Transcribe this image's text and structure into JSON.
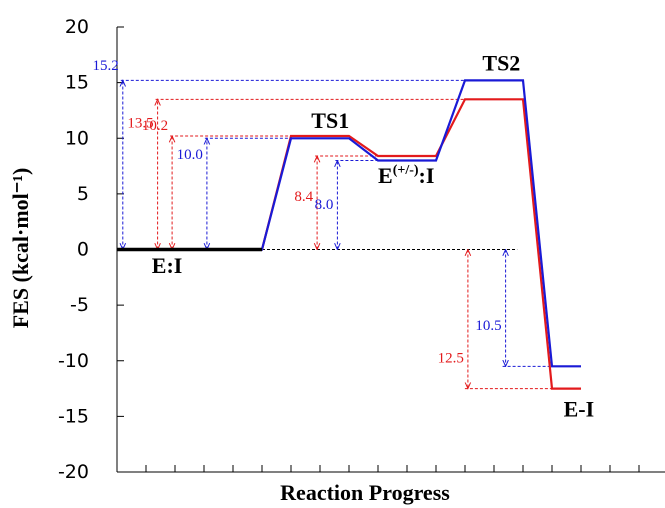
{
  "chart_data": {
    "type": "line",
    "title": "",
    "xlabel": "Reaction Progress",
    "ylabel": "FES (kcal·mol⁻¹)",
    "ylim": [
      -20,
      20
    ],
    "yticks": [
      "20",
      "15",
      "10",
      "5",
      "0",
      "-5",
      "-10",
      "-15",
      "-20"
    ],
    "x_categories": [
      "E:I",
      "TS1",
      "E(+/-):I",
      "TS2",
      "E-I"
    ],
    "series": [
      {
        "name": "",
        "color": "#e31a1c",
        "points": [
          [
            0,
            0
          ],
          [
            5,
            0
          ],
          [
            6,
            10.2
          ],
          [
            8,
            10.2
          ],
          [
            9,
            8.4
          ],
          [
            11,
            8.4
          ],
          [
            12,
            13.5
          ],
          [
            14,
            13.5
          ],
          [
            15,
            -12.5
          ],
          [
            16,
            -12.5
          ]
        ]
      },
      {
        "name": "",
        "color": "#1a1ad6",
        "points": [
          [
            0,
            0
          ],
          [
            5,
            0
          ],
          [
            6,
            10.0
          ],
          [
            8,
            10.0
          ],
          [
            9,
            8.0
          ],
          [
            11,
            8.0
          ],
          [
            12,
            15.2
          ],
          [
            14,
            15.2
          ],
          [
            15,
            -10.5
          ],
          [
            16,
            -10.5
          ]
        ]
      }
    ],
    "state_labels": [
      {
        "text": "E:I",
        "x": 1.2,
        "y": -2.1
      },
      {
        "text": "TS1",
        "x": 6.7,
        "y": 10.9
      },
      {
        "text": "E",
        "sup": "(+/-)",
        "tail": ":I",
        "x": 9.0,
        "y": 6.0
      },
      {
        "text": "TS2",
        "x": 12.6,
        "y": 16.1
      },
      {
        "text": "E-I",
        "x": 15.4,
        "y": -15.0
      }
    ],
    "annotations": [
      {
        "text": "15.2",
        "color": "#1a1ad6",
        "x": 0.2,
        "y_from": 0,
        "y_to": 15.2,
        "label_y": 16.6,
        "guide_to": 12
      },
      {
        "text": "13.5",
        "color": "#e31a1c",
        "x": 1.4,
        "y_from": 0,
        "y_to": 13.5,
        "label_y": 11.4,
        "guide_to": 12
      },
      {
        "text": "10.2",
        "color": "#e31a1c",
        "x": 1.9,
        "y_from": 0,
        "y_to": 10.2,
        "label_y": 11.2,
        "guide_to": 6
      },
      {
        "text": "10.0",
        "color": "#1a1ad6",
        "x": 3.1,
        "y_from": 0,
        "y_to": 10.0,
        "label_y": 8.6,
        "guide_to": 6
      },
      {
        "text": "8.4",
        "color": "#e31a1c",
        "x": 6.9,
        "y_from": 0,
        "y_to": 8.4,
        "label_y": 4.8,
        "guide_to": 9
      },
      {
        "text": "8.0",
        "color": "#1a1ad6",
        "x": 7.6,
        "y_from": 0,
        "y_to": 8.0,
        "label_y": 4.1,
        "guide_to": 9
      },
      {
        "text": "12.5",
        "color": "#e31a1c",
        "x": 12.1,
        "y_from": 0,
        "y_to": -12.5,
        "label_y": -9.7,
        "guide_from": 10.4
      },
      {
        "text": "10.5",
        "color": "#1a1ad6",
        "x": 13.4,
        "y_from": 0,
        "y_to": -10.5,
        "label_y": -6.8,
        "guide_from": 10.4
      }
    ],
    "zero_line_to_x": 13.8
  }
}
